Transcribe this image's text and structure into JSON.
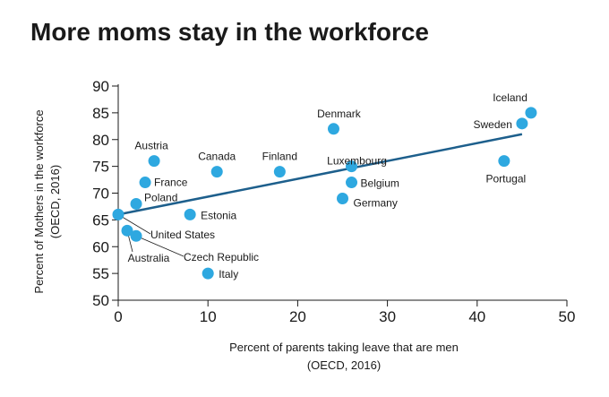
{
  "chart_data": {
    "type": "scatter",
    "title": "More moms stay in the workforce",
    "xlabel": "Percent of parents taking leave that are men",
    "xlabel_source": "(OECD, 2016)",
    "ylabel": "Percent of Mothers in the workforce",
    "ylabel_source": "(OECD, 2016)",
    "xlim": [
      0,
      50
    ],
    "ylim": [
      50,
      90
    ],
    "xticks": [
      0,
      10,
      20,
      30,
      40,
      50
    ],
    "yticks": [
      50,
      55,
      60,
      65,
      70,
      75,
      80,
      85,
      90
    ],
    "grid": false,
    "legend": "none",
    "point_color": "#2ea8e0",
    "trend_color": "#1d5f8c",
    "trend_line": {
      "x": [
        0,
        45
      ],
      "y": [
        66,
        81
      ]
    },
    "points": [
      {
        "label": "Iceland",
        "x": 46,
        "y": 85
      },
      {
        "label": "Sweden",
        "x": 45,
        "y": 83
      },
      {
        "label": "Portugal",
        "x": 43,
        "y": 76
      },
      {
        "label": "Denmark",
        "x": 24,
        "y": 82
      },
      {
        "label": "Luxembourg",
        "x": 26,
        "y": 75
      },
      {
        "label": "Belgium",
        "x": 26,
        "y": 72
      },
      {
        "label": "Germany",
        "x": 25,
        "y": 69
      },
      {
        "label": "Finland",
        "x": 18,
        "y": 74
      },
      {
        "label": "Canada",
        "x": 11,
        "y": 74
      },
      {
        "label": "Austria",
        "x": 4,
        "y": 76
      },
      {
        "label": "France",
        "x": 3,
        "y": 72
      },
      {
        "label": "Poland",
        "x": 2,
        "y": 68
      },
      {
        "label": "Estonia",
        "x": 8,
        "y": 66
      },
      {
        "label": "United States",
        "x": 0,
        "y": 66
      },
      {
        "label": "Australia",
        "x": 1,
        "y": 63
      },
      {
        "label": "Czech Republic",
        "x": 2,
        "y": 62
      },
      {
        "label": "Italy",
        "x": 10,
        "y": 55
      }
    ]
  }
}
